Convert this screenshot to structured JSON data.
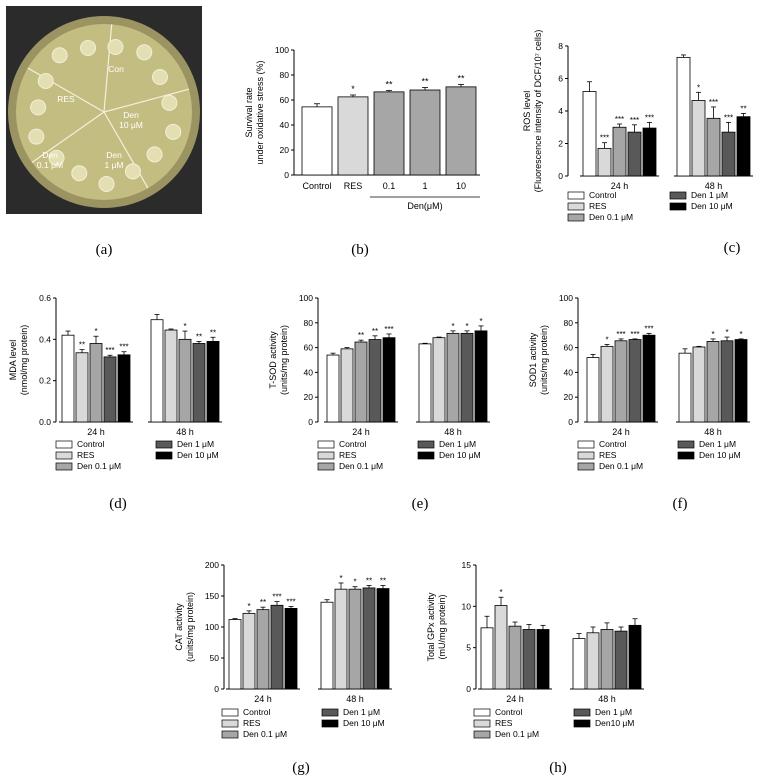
{
  "panel_labels": [
    "(a)",
    "(b)",
    "(c)",
    "(d)",
    "(e)",
    "(f)",
    "(g)",
    "(h)"
  ],
  "plate": {
    "sectors": [
      "Con",
      "RES",
      "Den 0.1 μM",
      "Den 1 μM",
      "Den 10 μM"
    ],
    "colors": {
      "dish": "#b8b078",
      "agar": "#c9c287",
      "spot": "#e2dcae",
      "dark": "#2b2b2b"
    }
  },
  "chart_data": [
    {
      "id": "b",
      "type": "bar",
      "title": "",
      "ylabel": "Survival rate under oxidative stress (%)",
      "ylim": [
        0,
        100
      ],
      "yticks": [
        0,
        20,
        40,
        60,
        80,
        100
      ],
      "categories": [
        "Control",
        "RES",
        "0.1",
        "1",
        "10"
      ],
      "group_label": "Den(μM)",
      "values": [
        54.5,
        62.5,
        66.5,
        68,
        70.5
      ],
      "errors": [
        2.5,
        1.5,
        1,
        2,
        2
      ],
      "sig": [
        "",
        "*",
        "**",
        "**",
        "**"
      ],
      "colors": [
        "#ffffff",
        "#d9d9d9",
        "#a6a6a6",
        "#a6a6a6",
        "#a6a6a6"
      ]
    },
    {
      "id": "c",
      "type": "bar",
      "title": "",
      "ylabel": "ROS level (Fluorescence intensity of DCF/10⁷ cells)",
      "ylim": [
        0,
        8
      ],
      "yticks": [
        0,
        2,
        4,
        6,
        8
      ],
      "groups": [
        "24 h",
        "48 h"
      ],
      "series": [
        {
          "name": "Control",
          "values": [
            5.2,
            7.3
          ],
          "errors": [
            0.6,
            0.15
          ],
          "sig": [
            "",
            ""
          ]
        },
        {
          "name": "RES",
          "values": [
            1.7,
            4.65
          ],
          "errors": [
            0.35,
            0.5
          ],
          "sig": [
            "***",
            "*"
          ]
        },
        {
          "name": "Den 0.1 μM",
          "values": [
            3.0,
            3.55
          ],
          "errors": [
            0.2,
            0.7
          ],
          "sig": [
            "***",
            "***"
          ]
        },
        {
          "name": "Den 1 μM",
          "values": [
            2.7,
            2.7
          ],
          "errors": [
            0.45,
            0.6
          ],
          "sig": [
            "***",
            "***"
          ]
        },
        {
          "name": "Den 10 μM",
          "values": [
            2.95,
            3.65
          ],
          "errors": [
            0.35,
            0.2
          ],
          "sig": [
            "***",
            "**"
          ]
        }
      ],
      "colors": [
        "#ffffff",
        "#d9d9d9",
        "#a6a6a6",
        "#595959",
        "#000000"
      ],
      "legend": "bottom"
    },
    {
      "id": "d",
      "type": "bar",
      "title": "",
      "ylabel": "MDA level (nmol/mg protein)",
      "ylim": [
        0,
        0.6
      ],
      "yticks": [
        0.0,
        0.2,
        0.4,
        0.6
      ],
      "groups": [
        "24 h",
        "48 h"
      ],
      "series": [
        {
          "name": "Control",
          "values": [
            0.42,
            0.495
          ],
          "errors": [
            0.02,
            0.025
          ],
          "sig": [
            "",
            ""
          ]
        },
        {
          "name": "RES",
          "values": [
            0.335,
            0.445
          ],
          "errors": [
            0.015,
            0.005
          ],
          "sig": [
            "**",
            ""
          ]
        },
        {
          "name": "Den 0.1 μM",
          "values": [
            0.38,
            0.4
          ],
          "errors": [
            0.035,
            0.04
          ],
          "sig": [
            "*",
            "*"
          ]
        },
        {
          "name": "Den 1 μM",
          "values": [
            0.315,
            0.38
          ],
          "errors": [
            0.008,
            0.01
          ],
          "sig": [
            "***",
            "**"
          ]
        },
        {
          "name": "Den 10 μM",
          "values": [
            0.325,
            0.39
          ],
          "errors": [
            0.015,
            0.02
          ],
          "sig": [
            "***",
            "**"
          ]
        }
      ],
      "colors": [
        "#ffffff",
        "#d9d9d9",
        "#a6a6a6",
        "#595959",
        "#000000"
      ],
      "legend": "bottom"
    },
    {
      "id": "e",
      "type": "bar",
      "title": "",
      "ylabel": "T-SOD activity (units/mg protein)",
      "ylim": [
        0,
        100
      ],
      "yticks": [
        0,
        20,
        40,
        60,
        80,
        100
      ],
      "groups": [
        "24 h",
        "48 h"
      ],
      "series": [
        {
          "name": "Control",
          "values": [
            54,
            63
          ],
          "errors": [
            1.5,
            0.5
          ],
          "sig": [
            "",
            ""
          ]
        },
        {
          "name": "RES",
          "values": [
            59,
            68
          ],
          "errors": [
            1,
            0.5
          ],
          "sig": [
            "",
            ""
          ]
        },
        {
          "name": "Den 0.1 μM",
          "values": [
            64.5,
            71.5
          ],
          "errors": [
            1.5,
            2
          ],
          "sig": [
            "**",
            "*"
          ]
        },
        {
          "name": "Den 1 μM",
          "values": [
            66.5,
            71.5
          ],
          "errors": [
            3,
            2
          ],
          "sig": [
            "**",
            "*"
          ]
        },
        {
          "name": "Den 10 μM",
          "values": [
            68,
            73.5
          ],
          "errors": [
            3,
            4
          ],
          "sig": [
            "***",
            "*"
          ]
        }
      ],
      "colors": [
        "#ffffff",
        "#d9d9d9",
        "#a6a6a6",
        "#595959",
        "#000000"
      ],
      "legend": "bottom"
    },
    {
      "id": "f",
      "type": "bar",
      "title": "",
      "ylabel": "SOD1 activity (units/mg protein)",
      "ylim": [
        0,
        100
      ],
      "yticks": [
        0,
        20,
        40,
        60,
        80,
        100
      ],
      "groups": [
        "24 h",
        "48 h"
      ],
      "series": [
        {
          "name": "Control",
          "values": [
            52,
            55.5
          ],
          "errors": [
            2.5,
            3.5
          ],
          "sig": [
            "",
            ""
          ]
        },
        {
          "name": "RES",
          "values": [
            61,
            60.5
          ],
          "errors": [
            1.5,
            0.5
          ],
          "sig": [
            "*",
            ""
          ]
        },
        {
          "name": "Den 0.1 μM",
          "values": [
            65.5,
            65
          ],
          "errors": [
            1.5,
            2
          ],
          "sig": [
            "***",
            "*"
          ]
        },
        {
          "name": "Den 1 μM",
          "values": [
            66.5,
            65.5
          ],
          "errors": [
            0.5,
            3
          ],
          "sig": [
            "***",
            "*"
          ]
        },
        {
          "name": "Den 10 μM",
          "values": [
            70,
            66.5
          ],
          "errors": [
            1.5,
            0.5
          ],
          "sig": [
            "***",
            "*"
          ]
        }
      ],
      "colors": [
        "#ffffff",
        "#d9d9d9",
        "#a6a6a6",
        "#595959",
        "#000000"
      ],
      "legend": "bottom"
    },
    {
      "id": "g",
      "type": "bar",
      "title": "",
      "ylabel": "CAT activity (units/mg protein)",
      "ylim": [
        0,
        200
      ],
      "yticks": [
        0,
        50,
        100,
        150,
        200
      ],
      "groups": [
        "24 h",
        "48 h"
      ],
      "series": [
        {
          "name": "Control",
          "values": [
            112,
            140
          ],
          "errors": [
            1.5,
            4
          ],
          "sig": [
            "",
            ""
          ]
        },
        {
          "name": "RES",
          "values": [
            122,
            161
          ],
          "errors": [
            4,
            10
          ],
          "sig": [
            "*",
            "*"
          ]
        },
        {
          "name": "Den 0.1 μM",
          "values": [
            128,
            161
          ],
          "errors": [
            4,
            4
          ],
          "sig": [
            "**",
            "*"
          ]
        },
        {
          "name": "Den 1 μM",
          "values": [
            135,
            163
          ],
          "errors": [
            6,
            4
          ],
          "sig": [
            "***",
            "**"
          ]
        },
        {
          "name": "Den 10 μM",
          "values": [
            130,
            162
          ],
          "errors": [
            3,
            5
          ],
          "sig": [
            "***",
            "**"
          ]
        }
      ],
      "colors": [
        "#ffffff",
        "#d9d9d9",
        "#a6a6a6",
        "#595959",
        "#000000"
      ],
      "legend": "bottom"
    },
    {
      "id": "h",
      "type": "bar",
      "title": "",
      "ylabel": "Total GPx activity (mU/mg protein)",
      "ylim": [
        0,
        15
      ],
      "yticks": [
        0,
        5,
        10,
        15
      ],
      "groups": [
        "24 h",
        "48 h"
      ],
      "series": [
        {
          "name": "Control",
          "values": [
            7.4,
            6.1
          ],
          "errors": [
            1.4,
            0.6
          ],
          "sig": [
            "",
            ""
          ]
        },
        {
          "name": "RES",
          "values": [
            10.1,
            6.8
          ],
          "errors": [
            1.0,
            0.7
          ],
          "sig": [
            "*",
            ""
          ]
        },
        {
          "name": "Den 0.1 μM",
          "values": [
            7.6,
            7.2
          ],
          "errors": [
            0.5,
            0.8
          ],
          "sig": [
            "",
            ""
          ]
        },
        {
          "name": "Den 1 μM",
          "values": [
            7.2,
            7.0
          ],
          "errors": [
            0.6,
            0.5
          ],
          "sig": [
            "",
            ""
          ]
        },
        {
          "name": "Den10 μM",
          "values": [
            7.2,
            7.7
          ],
          "errors": [
            0.5,
            0.8
          ],
          "sig": [
            "",
            ""
          ]
        }
      ],
      "colors": [
        "#ffffff",
        "#d9d9d9",
        "#a6a6a6",
        "#595959",
        "#000000"
      ],
      "legend": "bottom"
    }
  ]
}
